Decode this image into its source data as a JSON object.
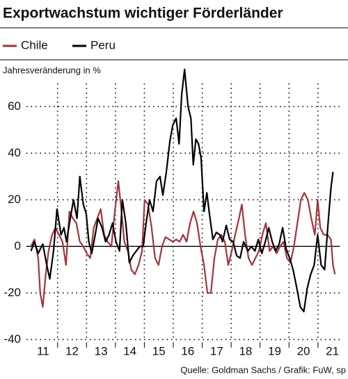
{
  "chart_data": {
    "type": "line",
    "title": "Exportwachstum wichtiger Förderländer",
    "ylabel": "Jahresveränderung in %",
    "source": "Quelle: Goldman Sachs / Grafik: FuW, sp",
    "xlim": [
      2010.9,
      2021.75
    ],
    "ylim": [
      -42,
      78
    ],
    "yticks": [
      -40,
      -20,
      0,
      20,
      40,
      60
    ],
    "xticks": [
      {
        "value": 2011.5,
        "label": "11"
      },
      {
        "value": 2012.5,
        "label": "12"
      },
      {
        "value": 2013.5,
        "label": "13"
      },
      {
        "value": 2014.5,
        "label": "14"
      },
      {
        "value": 2015.5,
        "label": "15"
      },
      {
        "value": 2016.5,
        "label": "16"
      },
      {
        "value": 2017.5,
        "label": "17"
      },
      {
        "value": 2018.5,
        "label": "18"
      },
      {
        "value": 2019.5,
        "label": "19"
      },
      {
        "value": 2020.5,
        "label": "20"
      },
      {
        "value": 2021.5,
        "label": "21"
      }
    ],
    "grid": true,
    "series": [
      {
        "name": "Chile",
        "color": "#a3343a",
        "x": [
          2011.08,
          2011.2,
          2011.33,
          2011.4,
          2011.49,
          2011.59,
          2011.69,
          2011.81,
          2011.93,
          2012.05,
          2012.17,
          2012.29,
          2012.41,
          2012.53,
          2012.65,
          2012.77,
          2012.89,
          2013.01,
          2013.13,
          2013.25,
          2013.37,
          2013.49,
          2013.61,
          2013.73,
          2013.86,
          2013.98,
          2014.1,
          2014.2,
          2014.31,
          2014.43,
          2014.55,
          2014.67,
          2014.8,
          2014.92,
          2015.01,
          2015.13,
          2015.25,
          2015.37,
          2015.49,
          2015.61,
          2015.73,
          2015.86,
          2015.98,
          2016.1,
          2016.22,
          2016.34,
          2016.46,
          2016.58,
          2016.7,
          2016.82,
          2016.94,
          2017.06,
          2017.18,
          2017.3,
          2017.42,
          2017.54,
          2017.66,
          2017.78,
          2017.9,
          2018.02,
          2018.14,
          2018.27,
          2018.37,
          2018.48,
          2018.6,
          2018.72,
          2018.84,
          2018.96,
          2019.08,
          2019.2,
          2019.33,
          2019.45,
          2019.57,
          2019.69,
          2019.81,
          2019.93,
          2020.05,
          2020.17,
          2020.29,
          2020.41,
          2020.53,
          2020.65,
          2020.77,
          2020.89,
          2020.99,
          2021.08,
          2021.2,
          2021.33,
          2021.45,
          2021.52,
          2021.59
        ],
        "values": [
          0,
          3,
          -5,
          -20,
          -26,
          -12,
          -2,
          5,
          8,
          5,
          2,
          -8,
          15,
          12,
          10,
          2,
          0,
          -3,
          -5,
          8,
          12,
          16,
          5,
          2,
          0,
          15,
          28,
          16,
          2,
          -2,
          -10,
          -12,
          -8,
          -2,
          20,
          18,
          8,
          -5,
          -8,
          0,
          4,
          3,
          2,
          3,
          2,
          5,
          2,
          10,
          15,
          10,
          0,
          -8,
          -20,
          -20,
          -5,
          3,
          5,
          2,
          -8,
          -2,
          5,
          12,
          18,
          5,
          -5,
          -8,
          -5,
          -2,
          5,
          10,
          -2,
          0,
          -3,
          0,
          2,
          -5,
          -7,
          0,
          10,
          20,
          23,
          20,
          12,
          5,
          20,
          8,
          5,
          5,
          3,
          -8,
          -12
        ]
      },
      {
        "name": "Peru",
        "color": "#000000",
        "x": [
          2011.08,
          2011.2,
          2011.33,
          2011.49,
          2011.61,
          2011.73,
          2011.86,
          2011.98,
          2012.12,
          2012.22,
          2012.31,
          2012.41,
          2012.55,
          2012.67,
          2012.77,
          2012.89,
          2012.99,
          2013.08,
          2013.18,
          2013.3,
          2013.4,
          2013.54,
          2013.66,
          2013.78,
          2013.9,
          2014.02,
          2014.14,
          2014.24,
          2014.36,
          2014.48,
          2014.6,
          2014.72,
          2014.84,
          2014.96,
          2015.06,
          2015.18,
          2015.3,
          2015.42,
          2015.54,
          2015.64,
          2015.76,
          2015.88,
          2015.98,
          2016.1,
          2016.2,
          2016.29,
          2016.39,
          2016.51,
          2016.61,
          2016.69,
          2016.78,
          2016.87,
          2016.96,
          2017.06,
          2017.16,
          2017.25,
          2017.37,
          2017.49,
          2017.61,
          2017.7,
          2017.83,
          2017.95,
          2018.07,
          2018.19,
          2018.31,
          2018.43,
          2018.58,
          2018.7,
          2018.82,
          2018.94,
          2019.06,
          2019.18,
          2019.3,
          2019.42,
          2019.54,
          2019.66,
          2019.78,
          2019.9,
          2020.02,
          2020.14,
          2020.27,
          2020.39,
          2020.51,
          2020.63,
          2020.75,
          2020.87,
          2020.99,
          2021.11,
          2021.23,
          2021.35,
          2021.45,
          2021.52
        ],
        "values": [
          -2,
          2,
          -3,
          1,
          -7,
          -14,
          -2,
          16,
          5,
          8,
          2,
          10,
          20,
          12,
          30,
          18,
          14,
          2,
          -3,
          5,
          12,
          8,
          2,
          5,
          10,
          2,
          -2,
          20,
          10,
          -7,
          -4,
          -2,
          0,
          0,
          10,
          20,
          15,
          28,
          30,
          22,
          32,
          45,
          52,
          55,
          44,
          65,
          76,
          60,
          55,
          35,
          46,
          44,
          38,
          15,
          23,
          14,
          3,
          6,
          5,
          2,
          9,
          3,
          2,
          -4,
          -5,
          2,
          -2,
          0,
          -2,
          3,
          -3,
          2,
          8,
          2,
          -2,
          1,
          8,
          -1,
          -5,
          -10,
          -18,
          -26,
          -28,
          -18,
          -12,
          -8,
          5,
          -8,
          -10,
          10,
          25,
          32
        ]
      }
    ]
  }
}
